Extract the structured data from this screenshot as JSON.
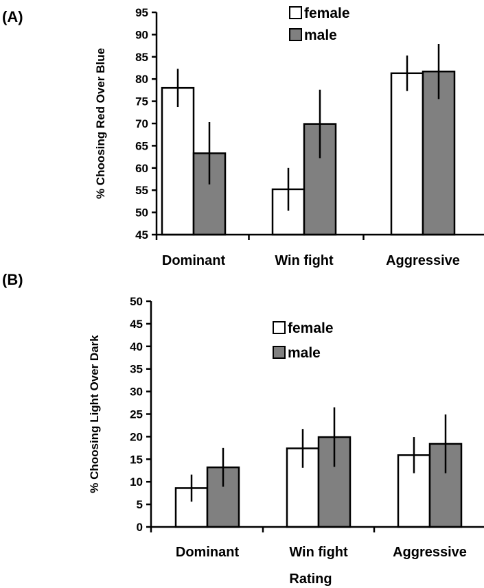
{
  "chart_data": [
    {
      "panel_label": "(A)",
      "type": "bar",
      "categories": [
        "Dominant",
        "Win fight",
        "Aggressive"
      ],
      "series": [
        {
          "name": "female",
          "values": [
            78,
            55.2,
            81.3
          ],
          "errors": [
            4.3,
            4.8,
            4.0
          ],
          "color": "#ffffff"
        },
        {
          "name": "male",
          "values": [
            63.3,
            69.9,
            81.7
          ],
          "errors": [
            7.0,
            7.7,
            6.2
          ],
          "color": "#808080"
        }
      ],
      "xlabel": "",
      "ylabel": "% Choosing Red Over Blue",
      "ylim": [
        45,
        95
      ],
      "yticks": [
        "45",
        "50",
        "55",
        "60",
        "65",
        "70",
        "75",
        "80",
        "85",
        "90",
        "95"
      ],
      "grid": false,
      "legend": "top-center"
    },
    {
      "panel_label": "(B)",
      "type": "bar",
      "categories": [
        "Dominant",
        "Win fight",
        "Aggressive"
      ],
      "series": [
        {
          "name": "female",
          "values": [
            8.6,
            17.4,
            15.9
          ],
          "errors": [
            3.0,
            4.3,
            4.0
          ],
          "color": "#ffffff"
        },
        {
          "name": "male",
          "values": [
            13.2,
            19.9,
            18.4
          ],
          "errors": [
            4.3,
            6.6,
            6.5
          ],
          "color": "#808080"
        }
      ],
      "xlabel": "Rating",
      "ylabel": "% Choosing Light Over Dark",
      "ylim": [
        0,
        50
      ],
      "yticks": [
        "0",
        "5",
        "10",
        "15",
        "20",
        "25",
        "30",
        "35",
        "40",
        "45",
        "50"
      ],
      "grid": false,
      "legend": "top-center"
    }
  ]
}
